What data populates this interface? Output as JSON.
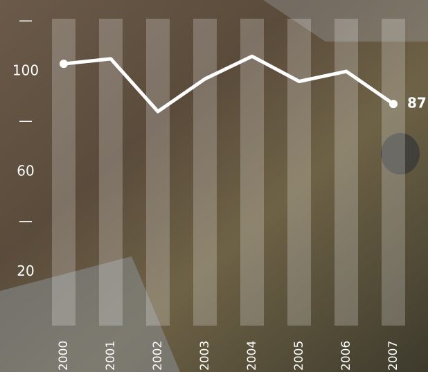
{
  "chart_data": {
    "type": "line",
    "categories": [
      "2000",
      "2001",
      "2002",
      "2003",
      "2004",
      "2005",
      "2006",
      "2007"
    ],
    "series": [
      {
        "color": "#ffffff",
        "values": [
          103,
          105,
          84,
          97,
          106,
          96,
          100,
          87
        ]
      }
    ],
    "ylim": [
      0,
      121
    ],
    "yticks": [
      20,
      {
        "value": 40,
        "label": "—"
      },
      60,
      {
        "value": 80,
        "label": "—"
      },
      100,
      {
        "value": 120,
        "label": "—"
      }
    ],
    "label_last": true,
    "column_bands": true
  }
}
